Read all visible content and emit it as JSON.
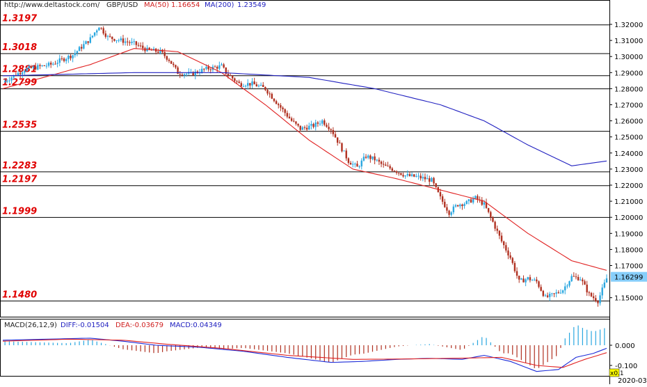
{
  "header": {
    "site": "http://www.deltastock.com/",
    "symbol": "GBP/USD",
    "ma50_label": "MA(50)",
    "ma50_value": "1.16654",
    "ma200_label": "MA(200)",
    "ma200_value": "1.23549"
  },
  "macd_header": {
    "label": "MACD(26,12,9)",
    "diff": "DIFF:-0.01504",
    "dea": "DEA:-0.03679",
    "macd": "MACD:0.04349"
  },
  "colors": {
    "level_label": "#e00000",
    "ma50": "#e02020",
    "ma200": "#2020c0",
    "bull": "#2aa7e0",
    "bear": "#b03020",
    "diff": "#1a2ad8",
    "dea": "#e02020",
    "price_tag_bg": "#87cefa"
  },
  "chart_data": {
    "type": "candlestick",
    "title": "GBP/USD",
    "y_axis": {
      "min": 1.14,
      "max": 1.325,
      "ticks": [
        "1.32000",
        "1.31000",
        "1.30000",
        "1.29000",
        "1.28000",
        "1.27000",
        "1.26000",
        "1.25000",
        "1.24000",
        "1.23000",
        "1.22000",
        "1.21000",
        "1.20000",
        "1.19000",
        "1.18000",
        "1.17000",
        "1.15000"
      ]
    },
    "current_price": "1.16299",
    "levels": [
      "1.3197",
      "1.3018",
      "1.2881",
      "1.2799",
      "1.2535",
      "1.2283",
      "1.2197",
      "1.1999",
      "1.1480"
    ],
    "close_path": [
      [
        0,
        1.284
      ],
      [
        10,
        1.292
      ],
      [
        22,
        1.295
      ],
      [
        32,
        1.301
      ],
      [
        40,
        1.311
      ],
      [
        44,
        1.319
      ],
      [
        48,
        1.312
      ],
      [
        54,
        1.31
      ],
      [
        60,
        1.308
      ],
      [
        66,
        1.304
      ],
      [
        72,
        1.303
      ],
      [
        76,
        1.298
      ],
      [
        80,
        1.29
      ],
      [
        86,
        1.289
      ],
      [
        92,
        1.292
      ],
      [
        100,
        1.294
      ],
      [
        102,
        1.29
      ],
      [
        108,
        1.283
      ],
      [
        114,
        1.283
      ],
      [
        120,
        1.28
      ],
      [
        126,
        1.27
      ],
      [
        132,
        1.26
      ],
      [
        136,
        1.255
      ],
      [
        142,
        1.257
      ],
      [
        146,
        1.26
      ],
      [
        150,
        1.255
      ],
      [
        154,
        1.245
      ],
      [
        158,
        1.235
      ],
      [
        162,
        1.231
      ],
      [
        166,
        1.238
      ],
      [
        170,
        1.236
      ],
      [
        174,
        1.232
      ],
      [
        178,
        1.23
      ],
      [
        184,
        1.226
      ],
      [
        190,
        1.225
      ],
      [
        196,
        1.223
      ],
      [
        200,
        1.212
      ],
      [
        204,
        1.203
      ],
      [
        208,
        1.208
      ],
      [
        212,
        1.209
      ],
      [
        216,
        1.212
      ],
      [
        220,
        1.208
      ],
      [
        224,
        1.197
      ],
      [
        228,
        1.185
      ],
      [
        232,
        1.175
      ],
      [
        236,
        1.16
      ],
      [
        240,
        1.162
      ],
      [
        244,
        1.16
      ],
      [
        248,
        1.15
      ],
      [
        252,
        1.152
      ],
      [
        256,
        1.155
      ],
      [
        260,
        1.163
      ],
      [
        264,
        1.162
      ],
      [
        268,
        1.152
      ],
      [
        272,
        1.148
      ],
      [
        276,
        1.162
      ]
    ],
    "ma50": [
      [
        0,
        1.28
      ],
      [
        40,
        1.295
      ],
      [
        60,
        1.305
      ],
      [
        80,
        1.303
      ],
      [
        100,
        1.29
      ],
      [
        120,
        1.27
      ],
      [
        140,
        1.248
      ],
      [
        160,
        1.23
      ],
      [
        180,
        1.224
      ],
      [
        200,
        1.217
      ],
      [
        220,
        1.21
      ],
      [
        240,
        1.19
      ],
      [
        260,
        1.173
      ],
      [
        276,
        1.167
      ]
    ],
    "ma200": [
      [
        0,
        1.288
      ],
      [
        60,
        1.29
      ],
      [
        100,
        1.29
      ],
      [
        140,
        1.287
      ],
      [
        170,
        1.28
      ],
      [
        200,
        1.27
      ],
      [
        220,
        1.26
      ],
      [
        240,
        1.245
      ],
      [
        260,
        1.232
      ],
      [
        276,
        1.235
      ]
    ],
    "macd": {
      "y_ticks": [
        "0.000",
        "-0.100"
      ],
      "diff_path": [
        [
          0,
          0.025
        ],
        [
          20,
          0.03
        ],
        [
          40,
          0.035
        ],
        [
          55,
          0.02
        ],
        [
          70,
          0.0
        ],
        [
          90,
          -0.01
        ],
        [
          110,
          -0.03
        ],
        [
          130,
          -0.06
        ],
        [
          150,
          -0.085
        ],
        [
          165,
          -0.08
        ],
        [
          180,
          -0.07
        ],
        [
          195,
          -0.065
        ],
        [
          210,
          -0.07
        ],
        [
          220,
          -0.05
        ],
        [
          232,
          -0.08
        ],
        [
          244,
          -0.13
        ],
        [
          254,
          -0.12
        ],
        [
          262,
          -0.06
        ],
        [
          270,
          -0.04
        ],
        [
          276,
          -0.015
        ]
      ],
      "dea_path": [
        [
          0,
          0.02
        ],
        [
          30,
          0.03
        ],
        [
          55,
          0.025
        ],
        [
          75,
          0.005
        ],
        [
          100,
          -0.015
        ],
        [
          130,
          -0.05
        ],
        [
          160,
          -0.07
        ],
        [
          185,
          -0.068
        ],
        [
          210,
          -0.064
        ],
        [
          228,
          -0.06
        ],
        [
          244,
          -0.1
        ],
        [
          256,
          -0.11
        ],
        [
          266,
          -0.07
        ],
        [
          276,
          -0.037
        ]
      ]
    },
    "x_axis_label": "2020-03",
    "scale_label": "x0.1"
  }
}
